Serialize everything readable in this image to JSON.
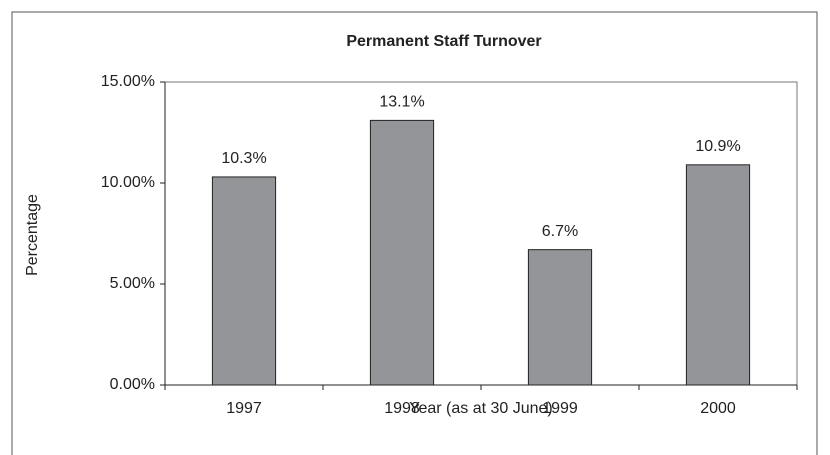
{
  "chart_data": {
    "type": "bar",
    "title": "Permanent Staff Turnover",
    "x_label": "Year (as at 30 June)",
    "y_label": "Percentage",
    "categories": [
      "1997",
      "1998",
      "1999",
      "2000"
    ],
    "values": [
      10.3,
      13.1,
      6.7,
      10.9
    ],
    "value_labels": [
      "10.3%",
      "13.1%",
      "6.7%",
      "10.9%"
    ],
    "color": "#939598",
    "ylim": [
      0,
      15
    ],
    "yticks": [
      {
        "value": 0,
        "label": "0.00%"
      },
      {
        "value": 5,
        "label": "5.00%"
      },
      {
        "value": 10,
        "label": "10.00%"
      },
      {
        "value": 15,
        "label": "15.00%"
      }
    ],
    "grid": false
  }
}
